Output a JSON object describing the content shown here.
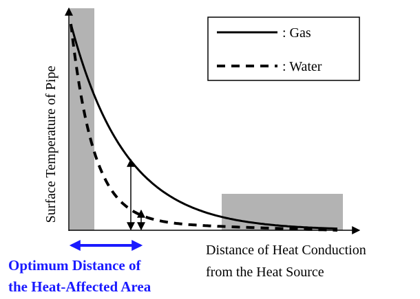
{
  "y_axis_label": "Surface Temperature of Pipe",
  "x_axis_label": [
    "Distance of Heat Conduction",
    "from the Heat Source"
  ],
  "legend": [
    ": Gas",
    ": Water"
  ],
  "annotation": [
    "Optimum Distance of",
    "the Heat-Affected Area"
  ]
}
